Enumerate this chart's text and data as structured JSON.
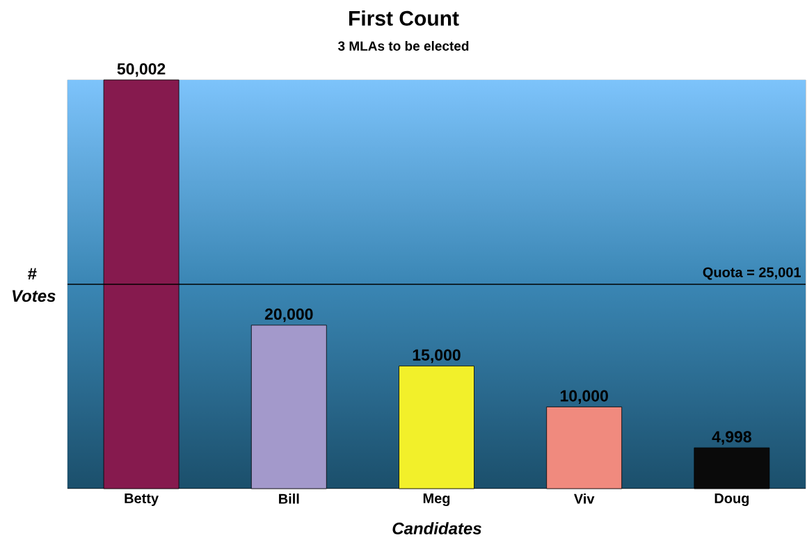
{
  "chart_data": {
    "type": "bar",
    "title": "First Count",
    "subtitle": "3 MLAs to be elected",
    "xlabel": "Candidates",
    "ylabel": "# Votes",
    "categories": [
      "Betty",
      "Bill",
      "Meg",
      "Viv",
      "Doug"
    ],
    "values": [
      50002,
      20000,
      15000,
      10000,
      4998
    ],
    "colors": [
      "#861a4e",
      "#a399cb",
      "#f2f02a",
      "#f08a7e",
      "#0a0a0a"
    ],
    "value_labels": [
      "50,002",
      "20,000",
      "15,000",
      "10,000",
      "4,998"
    ],
    "ylim": [
      0,
      50002
    ],
    "tick_labels": "x",
    "ref_lines": [
      {
        "axis": "y",
        "value": 25001,
        "label": "Quota = 25,001",
        "color": "#000000"
      }
    ]
  }
}
